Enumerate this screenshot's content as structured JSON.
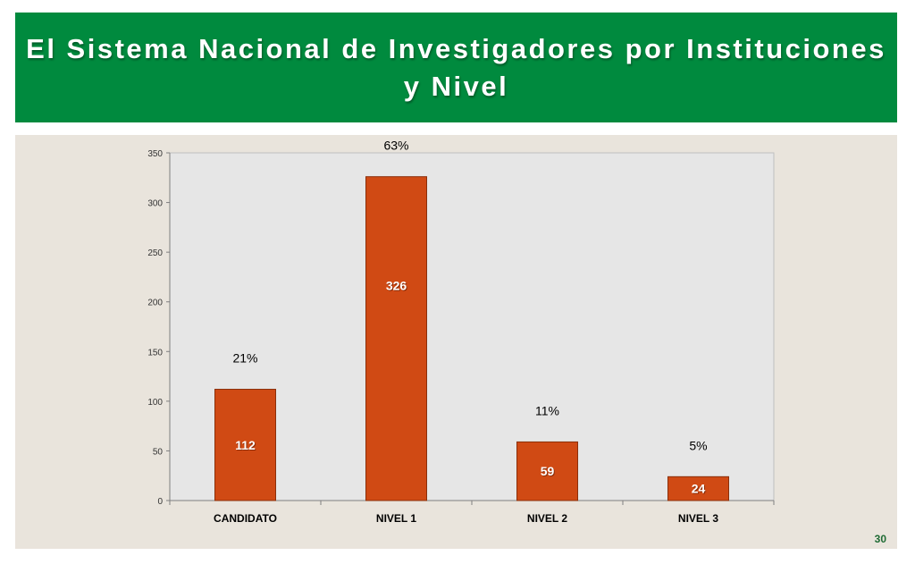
{
  "header": {
    "title": "El Sistema Nacional de Investigadores por Instituciones y Nivel"
  },
  "slide_number": "30",
  "colors": {
    "banner": "#008a3e",
    "panel": "#e9e4dc",
    "plot_area": "#e6e6e6",
    "bar": "#d04a14"
  },
  "chart_data": {
    "type": "bar",
    "categories": [
      "CANDIDATO",
      "NIVEL 1",
      "NIVEL 2",
      "NIVEL 3"
    ],
    "values": [
      112,
      326,
      59,
      24
    ],
    "value_labels": [
      "112",
      "326",
      "59",
      "24"
    ],
    "percent_labels": [
      "21%",
      "63%",
      "11%",
      "5%"
    ],
    "yticks": [
      "0",
      "50",
      "100",
      "150",
      "200",
      "250",
      "300",
      "350"
    ],
    "ylim": [
      0,
      350
    ],
    "grid": false,
    "legend": "none"
  }
}
